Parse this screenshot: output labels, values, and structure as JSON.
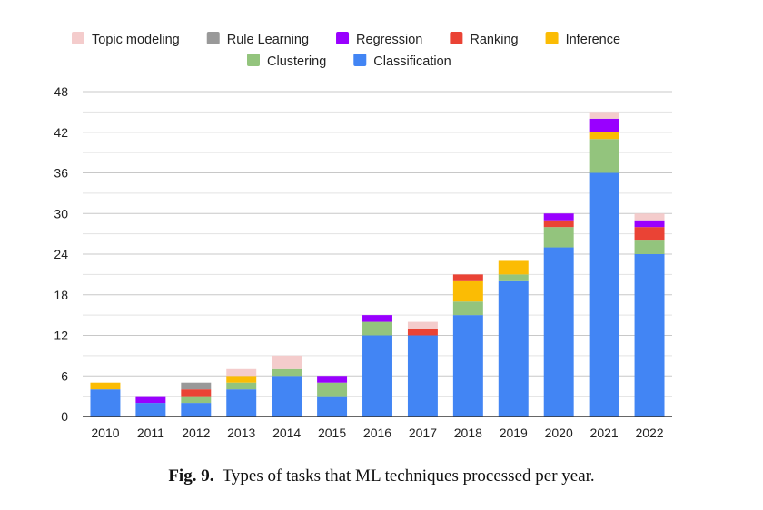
{
  "chart_data": {
    "type": "bar",
    "stacked": true,
    "categories": [
      "2010",
      "2011",
      "2012",
      "2013",
      "2014",
      "2015",
      "2016",
      "2017",
      "2018",
      "2019",
      "2020",
      "2021",
      "2022"
    ],
    "series": [
      {
        "name": "Classification",
        "color": "#4285f4",
        "values": [
          4,
          2,
          2,
          4,
          6,
          3,
          12,
          12,
          15,
          20,
          25,
          36,
          24
        ]
      },
      {
        "name": "Clustering",
        "color": "#93c47d",
        "values": [
          0,
          0,
          1,
          1,
          1,
          2,
          2,
          0,
          2,
          1,
          3,
          5,
          2
        ]
      },
      {
        "name": "Inference",
        "color": "#fbbc04",
        "values": [
          1,
          0,
          0,
          1,
          0,
          0,
          0,
          0,
          3,
          2,
          0,
          1,
          0
        ]
      },
      {
        "name": "Ranking",
        "color": "#ea4335",
        "values": [
          0,
          0,
          1,
          0,
          0,
          0,
          0,
          1,
          1,
          0,
          1,
          0,
          2
        ]
      },
      {
        "name": "Regression",
        "color": "#9900ff",
        "values": [
          0,
          1,
          0,
          0,
          0,
          1,
          1,
          0,
          0,
          0,
          1,
          2,
          1
        ]
      },
      {
        "name": "Rule Learning",
        "color": "#999999",
        "values": [
          0,
          0,
          1,
          0,
          0,
          0,
          0,
          0,
          0,
          0,
          0,
          0,
          0
        ]
      },
      {
        "name": "Topic modeling",
        "color": "#f4cccc",
        "values": [
          0,
          0,
          0,
          1,
          2,
          0,
          0,
          1,
          0,
          0,
          0,
          1,
          1
        ]
      }
    ],
    "legend_order": [
      [
        "Topic modeling",
        "Rule Learning",
        "Regression",
        "Ranking",
        "Inference"
      ],
      [
        "Clustering",
        "Classification"
      ]
    ],
    "yticks": [
      0,
      6,
      12,
      18,
      24,
      30,
      36,
      42,
      48
    ],
    "ylim": [
      0,
      48
    ],
    "grid": true,
    "legend_position": "top"
  },
  "caption": {
    "label": "Fig. 9.",
    "text": "Types of tasks that ML techniques processed per year."
  }
}
